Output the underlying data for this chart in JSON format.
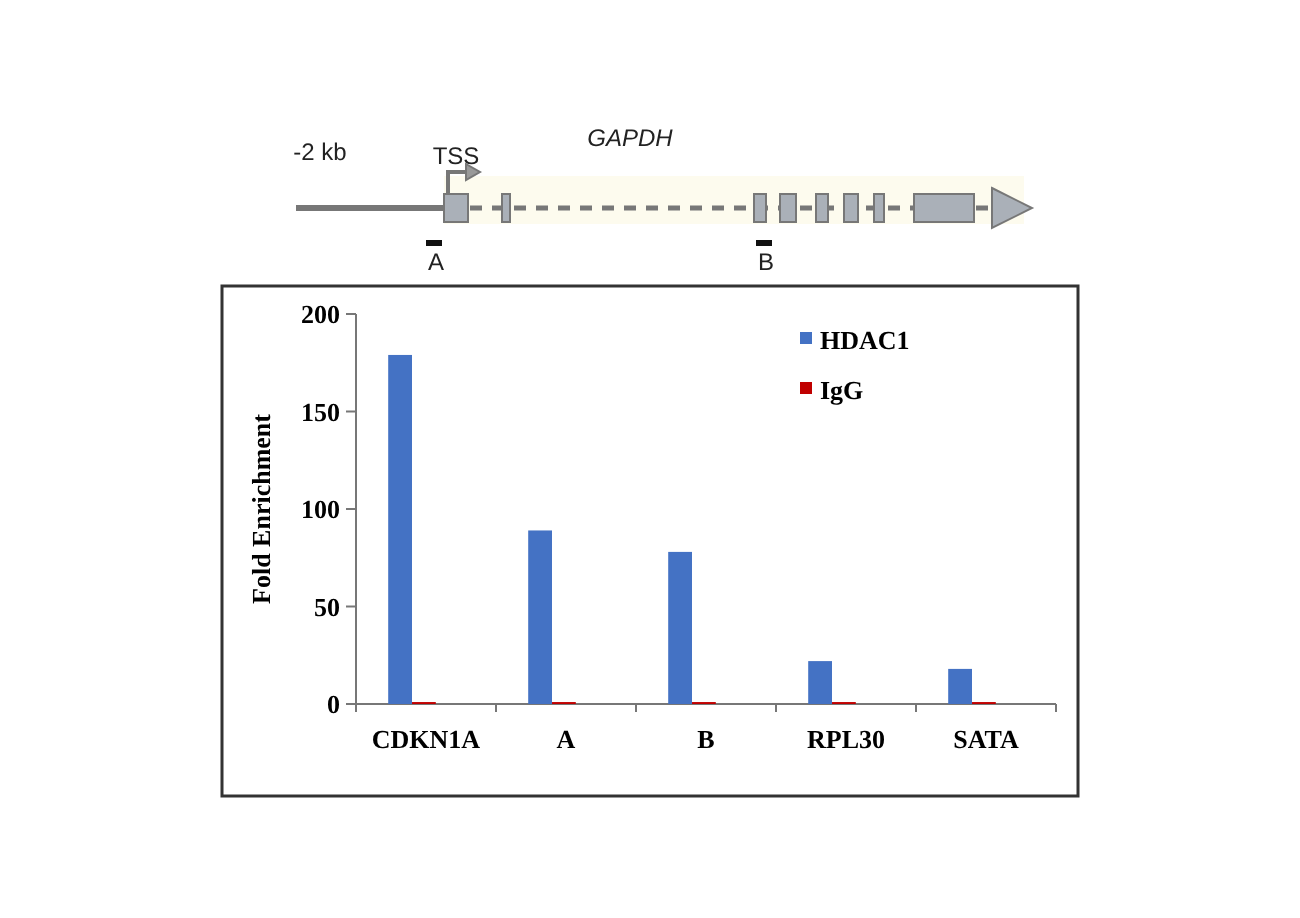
{
  "chart_data": {
    "type": "bar",
    "ylabel": "Fold Enrichment",
    "categories": [
      "CDKN1A",
      "A",
      "B",
      "RPL30",
      "SATA"
    ],
    "series": [
      {
        "name": "HDAC1",
        "color": "#4472c4",
        "values": [
          179,
          89,
          78,
          22,
          18
        ]
      },
      {
        "name": "IgG",
        "color": "#c00000",
        "values": [
          1,
          1,
          1,
          1,
          1
        ]
      }
    ],
    "ylim": [
      0,
      200
    ],
    "yticks": [
      0,
      50,
      100,
      150,
      200
    ],
    "legend": "top right",
    "annotations": [
      "-2 kb",
      "TSS",
      "GAPDH",
      "A",
      "B"
    ]
  }
}
